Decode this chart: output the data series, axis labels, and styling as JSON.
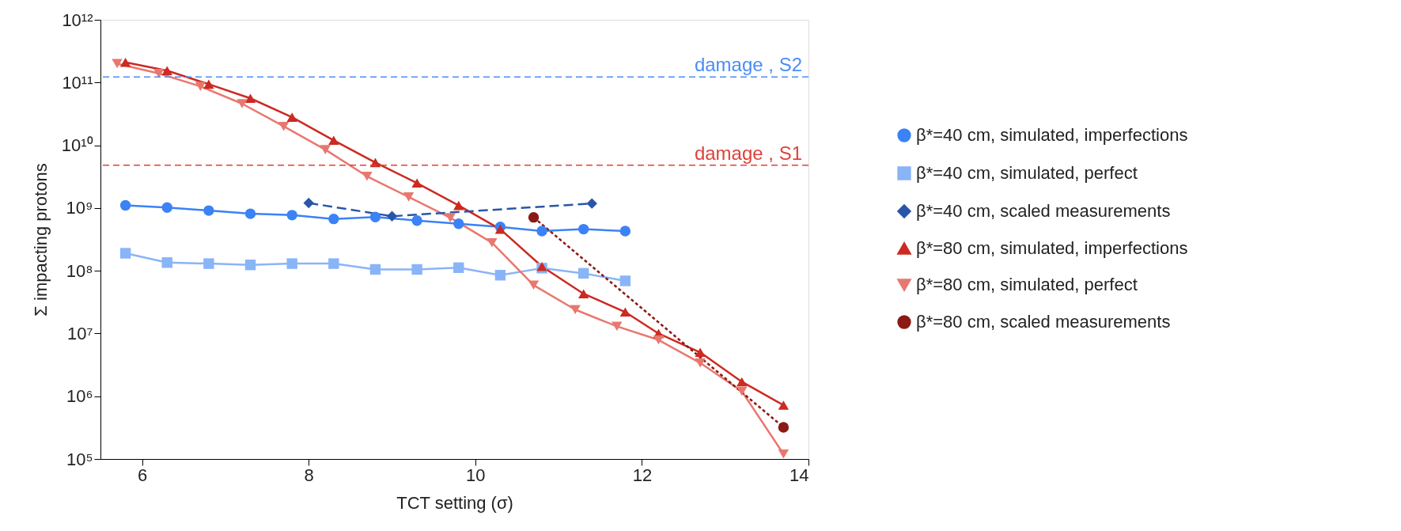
{
  "chart_data": {
    "type": "line",
    "xlabel": "TCT setting (σ)",
    "ylabel": "Σ impacting protons",
    "xlim": [
      5.5,
      14
    ],
    "xticks": [
      6,
      8,
      10,
      12,
      14
    ],
    "ylim": [
      100000,
      1000000000000
    ],
    "log": true,
    "yticks": [
      {
        "value": 100000,
        "label": "10⁵"
      },
      {
        "value": 1000000,
        "label": "10⁶"
      },
      {
        "value": 10000000,
        "label": "10⁷"
      },
      {
        "value": 100000000,
        "label": "10⁸"
      },
      {
        "value": 1000000000,
        "label": "10⁹"
      },
      {
        "value": 10000000000,
        "label": "10¹⁰"
      },
      {
        "value": 100000000000,
        "label": "10¹¹"
      },
      {
        "value": 1000000000000,
        "label": "10¹²"
      }
    ],
    "grid": false,
    "legend": "right",
    "ref_lines": [
      {
        "axis": "y",
        "value": 123000000000,
        "label": "damage , S2",
        "color": "#4a8cf7",
        "line_style": "dashed"
      },
      {
        "axis": "y",
        "value": 4800000000,
        "label": "damage , S1",
        "color": "#e0403a",
        "line_style": "dashed"
      }
    ],
    "series": [
      {
        "name": "β*=40 cm, simulated, imperfections",
        "color": "#3b82f6",
        "marker": "circle",
        "line_style": "solid",
        "x": [
          5.8,
          6.3,
          6.8,
          7.3,
          7.8,
          8.3,
          8.8,
          9.3,
          9.8,
          10.3,
          10.8,
          11.3,
          11.8
        ],
        "values": [
          1100000000.0,
          1020000000.0,
          910000000.0,
          810000000.0,
          770000000.0,
          670000000.0,
          720000000.0,
          630000000.0,
          560000000.0,
          500000000.0,
          430000000.0,
          460000000.0,
          430000000.0
        ]
      },
      {
        "name": "β*=40 cm, simulated, perfect",
        "color": "#8ab4f8",
        "marker": "square",
        "line_style": "solid",
        "x": [
          5.8,
          6.3,
          6.8,
          7.3,
          7.8,
          8.3,
          8.8,
          9.3,
          9.8,
          10.3,
          10.8,
          11.3,
          11.8
        ],
        "values": [
          190000000.0,
          135000000.0,
          130000000.0,
          124000000.0,
          130000000.0,
          130000000.0,
          105000000.0,
          105000000.0,
          112000000.0,
          85000000.0,
          110000000.0,
          91000000.0,
          69000000.0
        ]
      },
      {
        "name": "β*=40 cm, scaled measurements",
        "color": "#2a56a8",
        "marker": "diamond",
        "line_style": "dashed",
        "x": [
          8.0,
          9.0,
          11.4
        ],
        "values": [
          1200000000.0,
          740000000.0,
          1180000000.0
        ]
      },
      {
        "name": "β*=80 cm, simulated, imperfections",
        "color": "#cc2a22",
        "marker": "triangle",
        "line_style": "solid",
        "x": [
          5.8,
          6.3,
          6.8,
          7.3,
          7.8,
          8.3,
          8.8,
          9.3,
          9.8,
          10.3,
          10.8,
          11.3,
          11.8,
          12.2,
          12.7,
          13.2,
          13.7
        ],
        "values": [
          210000000000.0,
          155000000000.0,
          94000000000.0,
          56000000000.0,
          28000000000.0,
          12000000000.0,
          5300000000.0,
          2500000000.0,
          1100000000.0,
          460000000.0,
          117000000.0,
          43000000.0,
          22000000.0,
          10000000.0,
          5000000.0,
          1700000.0,
          720000.0
        ]
      },
      {
        "name": "β*=80 cm, simulated, perfect",
        "color": "#e8786f",
        "marker": "triangle-down",
        "line_style": "solid",
        "x": [
          5.7,
          6.2,
          6.7,
          7.2,
          7.7,
          8.2,
          8.7,
          9.2,
          9.7,
          10.2,
          10.7,
          11.2,
          11.7,
          12.2,
          12.7,
          13.2,
          13.7
        ],
        "values": [
          200000000000.0,
          140000000000.0,
          87000000000.0,
          46000000000.0,
          20000000000.0,
          8500000000.0,
          3200000000.0,
          1500000000.0,
          700000000.0,
          280000000.0,
          59000000.0,
          24000000.0,
          13000000.0,
          7900000.0,
          3400000.0,
          1200000.0,
          120000.0
        ]
      },
      {
        "name": "β*=80 cm, scaled measurements",
        "color": "#8b1a14",
        "marker": "circle",
        "line_style": "dotted",
        "x": [
          10.7,
          13.7
        ],
        "values": [
          710000000.0,
          320000.0
        ]
      }
    ]
  }
}
